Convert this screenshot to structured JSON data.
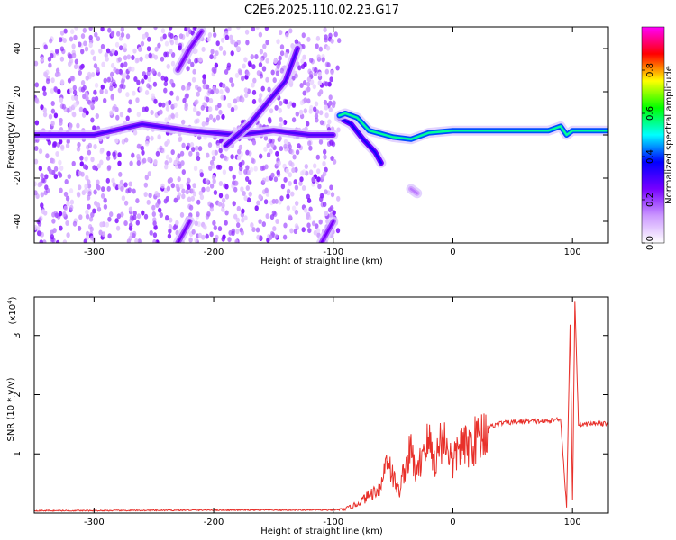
{
  "figure": {
    "title": "C2E6.2025.110.02.23.G17"
  },
  "chart_data": [
    {
      "type": "heatmap",
      "title": "C2E6.2025.110.02.23.G17",
      "xlabel": "Height of straight line (km)",
      "ylabel": "Frequency (Hz)",
      "xlim": [
        -350,
        130
      ],
      "ylim": [
        -50,
        50
      ],
      "xticks": [
        -300,
        -200,
        -100,
        0,
        100
      ],
      "xtick_labels": [
        "-300",
        "-200",
        "-100",
        "0",
        "100"
      ],
      "yticks": [
        -40,
        -20,
        0,
        20,
        40
      ],
      "ytick_labels": [
        "-40",
        "-20",
        "0",
        "20",
        "40"
      ],
      "colorbar": {
        "label": "Normalized spectral amplitude",
        "range": [
          0,
          1
        ],
        "ticks": [
          0.0,
          0.2,
          0.4,
          0.6,
          0.8
        ],
        "tick_labels": [
          "0.0",
          "0.2",
          "0.4",
          "0.6",
          "0.8"
        ],
        "colormap": [
          "#ffffff",
          "#cc99ff",
          "#7700ff",
          "#0000ff",
          "#00ffff",
          "#00ff00",
          "#ffff00",
          "#ff0000",
          "#ff00ff"
        ]
      },
      "scatter_region": {
        "x": [
          -350,
          -95
        ],
        "y": [
          -50,
          50
        ],
        "amplitude": [
          0.05,
          0.25
        ]
      },
      "traces": [
        {
          "x": [
            -350,
            -300,
            -260,
            -220,
            -180,
            -150,
            -120,
            -100
          ],
          "y": [
            0,
            0,
            5,
            2,
            0,
            2,
            0,
            0
          ],
          "amplitude": 0.3
        },
        {
          "x": [
            -190,
            -170,
            -155,
            -140,
            -130
          ],
          "y": [
            -5,
            5,
            15,
            25,
            40
          ],
          "amplitude": 0.3
        },
        {
          "x": [
            -230,
            -220,
            -210
          ],
          "y": [
            30,
            40,
            48
          ],
          "amplitude": 0.25
        },
        {
          "x": [
            -230,
            -220
          ],
          "y": [
            -50,
            -40
          ],
          "amplitude": 0.25
        },
        {
          "x": [
            -110,
            -100
          ],
          "y": [
            -50,
            -40
          ],
          "amplitude": 0.25
        },
        {
          "x": [
            -95,
            -85,
            -75,
            -65,
            -60
          ],
          "y": [
            8,
            5,
            -2,
            -8,
            -13
          ],
          "amplitude": 0.35
        },
        {
          "x": [
            -35,
            -30
          ],
          "y": [
            -25,
            -27
          ],
          "amplitude": 0.15
        },
        {
          "x": [
            -95,
            -90,
            -80,
            -70,
            -50,
            -35,
            -20,
            0,
            20,
            60,
            80,
            90,
            95,
            100,
            130
          ],
          "y": [
            9,
            10,
            8,
            2,
            -1,
            -2,
            1,
            2,
            2,
            2,
            2,
            4,
            0,
            2,
            2
          ],
          "amplitude": 0.55
        }
      ]
    },
    {
      "type": "line",
      "title": "",
      "xlabel": "Height of straight line (km)",
      "ylabel": "SNR (10 * v/v)",
      "multiplier_label": "(x10",
      "multiplier_exponent": "4",
      "multiplier_close": ")",
      "xlim": [
        -350,
        130
      ],
      "ylim": [
        0,
        3.65
      ],
      "xticks": [
        -300,
        -200,
        -100,
        0,
        100
      ],
      "xtick_labels": [
        "-300",
        "-200",
        "-100",
        "0",
        "100"
      ],
      "yticks": [
        1,
        2,
        3
      ],
      "ytick_labels": [
        "1",
        "2",
        "3"
      ],
      "grid": false,
      "series": [
        {
          "color": "#e8302a",
          "x": [
            -350,
            -300,
            -200,
            -120,
            -100,
            -90,
            -80,
            -70,
            -60,
            -55,
            -50,
            -45,
            -40,
            -35,
            -30,
            -25,
            -20,
            -15,
            -10,
            -5,
            0,
            5,
            10,
            20,
            30,
            40,
            60,
            80,
            90,
            95,
            98,
            100,
            102,
            105,
            110,
            120,
            130
          ],
          "y": [
            0.04,
            0.04,
            0.05,
            0.05,
            0.05,
            0.07,
            0.15,
            0.3,
            0.45,
            1.0,
            0.6,
            0.35,
            0.8,
            1.05,
            0.6,
            1.1,
            1.2,
            0.85,
            1.25,
            1.2,
            0.8,
            1.15,
            1.1,
            1.25,
            1.45,
            1.52,
            1.55,
            1.55,
            1.6,
            0.1,
            3.2,
            0.2,
            3.6,
            1.5,
            1.5,
            1.52,
            1.5
          ]
        }
      ]
    }
  ]
}
